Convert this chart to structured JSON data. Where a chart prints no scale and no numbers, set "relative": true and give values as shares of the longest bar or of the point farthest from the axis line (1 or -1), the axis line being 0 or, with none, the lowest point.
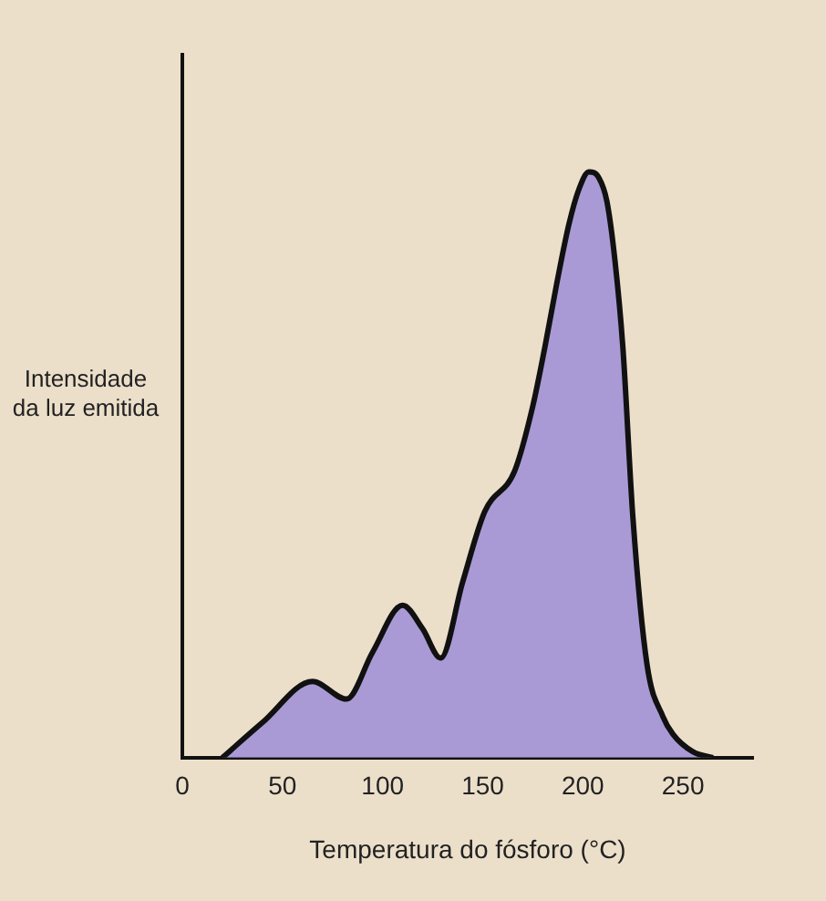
{
  "chart_data": {
    "type": "area",
    "relative": true,
    "xlabel": "Temperatura do fósforo (°C)",
    "ylabel": "Intensidade da luz emitida",
    "xlim": [
      0,
      285
    ],
    "xticks": [
      0,
      50,
      100,
      150,
      200,
      250
    ],
    "grid": false,
    "legend": false,
    "marker": "none",
    "series": [
      {
        "color": "#a99ad6",
        "x": [
          20,
          40,
          65,
          82,
          95,
          110,
          120,
          129,
          140,
          151,
          166,
          175,
          181,
          187,
          193,
          198,
          203,
          208,
          212,
          216,
          220,
          225,
          232,
          240,
          245,
          255,
          265
        ],
        "values": [
          0,
          0.06,
          0.13,
          0.1,
          0.18,
          0.26,
          0.22,
          0.17,
          0.3,
          0.42,
          0.49,
          0.6,
          0.7,
          0.81,
          0.91,
          0.97,
          1.0,
          0.99,
          0.95,
          0.85,
          0.7,
          0.41,
          0.16,
          0.07,
          0.04,
          0.01,
          0
        ]
      }
    ]
  }
}
